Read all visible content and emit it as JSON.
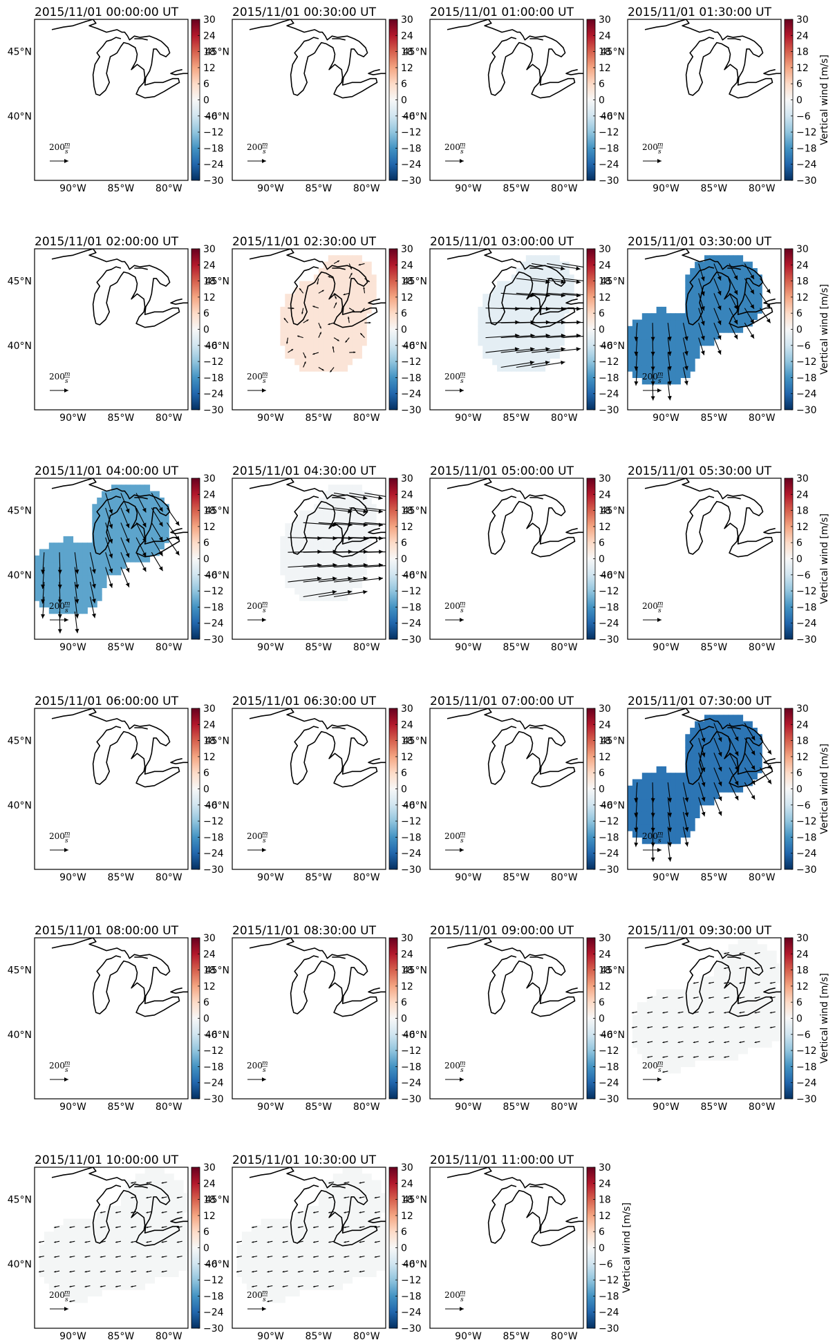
{
  "chart_data": {
    "type": "heatmap",
    "description_free": true,
    "colormap": "RdBu_r",
    "colorbar": {
      "label": "Vertical wind [m/s]",
      "ticks": [
        "30",
        "24",
        "18",
        "12",
        "6",
        "0",
        "−6",
        "−12",
        "−18",
        "−24",
        "−30"
      ],
      "range": [
        -30,
        30
      ]
    },
    "x_ticks": [
      "90°W",
      "85°W",
      "80°W"
    ],
    "y_ticks": [
      "45°N",
      "40°N"
    ],
    "x_range_lon": [
      -94,
      -78
    ],
    "y_range_lat": [
      35,
      47.5
    ],
    "reference_arrow": {
      "magnitude": "200",
      "unit_num": "m",
      "unit_den": "s"
    },
    "panels": [
      {
        "title": "2015/11/01 00:00:00 UT",
        "vertical_wind": null,
        "colorbar_label_shown": false
      },
      {
        "title": "2015/11/01 00:30:00 UT",
        "vertical_wind": null,
        "colorbar_label_shown": false
      },
      {
        "title": "2015/11/01 01:00:00 UT",
        "vertical_wind": null,
        "colorbar_label_shown": false
      },
      {
        "title": "2015/11/01 01:30:00 UT",
        "vertical_wind": null,
        "colorbar_label_shown": true
      },
      {
        "title": "2015/11/01 02:00:00 UT",
        "vertical_wind": null,
        "colorbar_label_shown": false
      },
      {
        "title": "2015/11/01 02:30:00 UT",
        "vertical_wind": 4,
        "region": "central",
        "arrow_scale": 0.1,
        "arrow_dir": "mixed",
        "colorbar_label_shown": false
      },
      {
        "title": "2015/11/01 03:00:00 UT",
        "vertical_wind": -3,
        "region": "central",
        "arrow_scale": 0.9,
        "arrow_dir": "east",
        "colorbar_label_shown": false
      },
      {
        "title": "2015/11/01 03:30:00 UT",
        "vertical_wind": -20,
        "region": "dumbbell",
        "arrow_scale": 0.45,
        "arrow_dir": "southeast",
        "colorbar_label_shown": true
      },
      {
        "title": "2015/11/01 04:00:00 UT",
        "vertical_wind": -16,
        "region": "dumbbell",
        "arrow_scale": 0.55,
        "arrow_dir": "southeast",
        "colorbar_label_shown": false
      },
      {
        "title": "2015/11/01 04:30:00 UT",
        "vertical_wind": -1,
        "region": "central",
        "arrow_scale": 0.9,
        "arrow_dir": "east",
        "colorbar_label_shown": false
      },
      {
        "title": "2015/11/01 05:00:00 UT",
        "vertical_wind": null,
        "colorbar_label_shown": false
      },
      {
        "title": "2015/11/01 05:30:00 UT",
        "vertical_wind": null,
        "colorbar_label_shown": true
      },
      {
        "title": "2015/11/01 06:00:00 UT",
        "vertical_wind": null,
        "colorbar_label_shown": false
      },
      {
        "title": "2015/11/01 06:30:00 UT",
        "vertical_wind": null,
        "colorbar_label_shown": false
      },
      {
        "title": "2015/11/01 07:00:00 UT",
        "vertical_wind": null,
        "colorbar_label_shown": false
      },
      {
        "title": "2015/11/01 07:30:00 UT",
        "vertical_wind": -22,
        "region": "dumbbell",
        "arrow_scale": 0.5,
        "arrow_dir": "southeast",
        "colorbar_label_shown": true
      },
      {
        "title": "2015/11/01 08:00:00 UT",
        "vertical_wind": null,
        "colorbar_label_shown": false
      },
      {
        "title": "2015/11/01 08:30:00 UT",
        "vertical_wind": null,
        "colorbar_label_shown": false
      },
      {
        "title": "2015/11/01 09:00:00 UT",
        "vertical_wind": null,
        "colorbar_label_shown": false
      },
      {
        "title": "2015/11/01 09:30:00 UT",
        "vertical_wind": -0.5,
        "region": "wide",
        "arrow_scale": 0.08,
        "arrow_dir": "west",
        "colorbar_label_shown": true
      },
      {
        "title": "2015/11/01 10:00:00 UT",
        "vertical_wind": -0.5,
        "region": "wide",
        "arrow_scale": 0.08,
        "arrow_dir": "west",
        "colorbar_label_shown": false
      },
      {
        "title": "2015/11/01 10:30:00 UT",
        "vertical_wind": -0.5,
        "region": "wide",
        "arrow_scale": 0.08,
        "arrow_dir": "west",
        "colorbar_label_shown": false
      },
      {
        "title": "2015/11/01 11:00:00 UT",
        "vertical_wind": null,
        "colorbar_label_shown": true
      }
    ]
  }
}
